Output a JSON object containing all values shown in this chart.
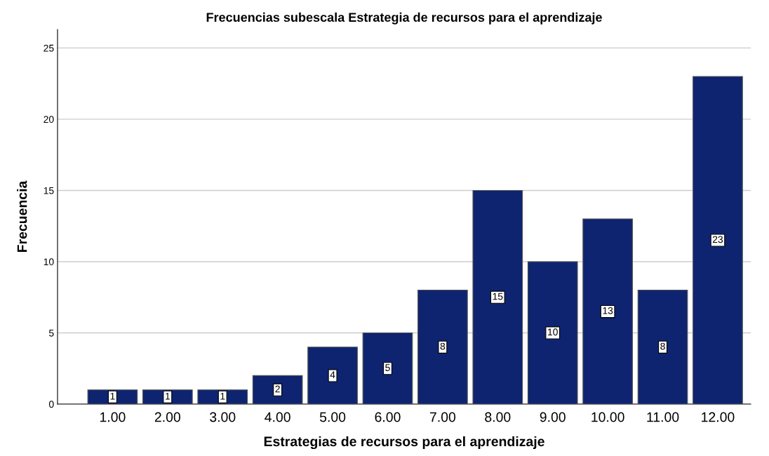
{
  "chart_data": {
    "type": "bar",
    "title": "Frecuencias subescala Estrategia de recursos para el aprendizaje",
    "xlabel": "Estrategias de recursos para el aprendizaje",
    "ylabel": "Frecuencia",
    "categories": [
      "1.00",
      "2.00",
      "3.00",
      "4.00",
      "5.00",
      "6.00",
      "7.00",
      "8.00",
      "9.00",
      "10.00",
      "11.00",
      "12.00"
    ],
    "values": [
      1,
      1,
      1,
      2,
      4,
      5,
      8,
      15,
      10,
      13,
      8,
      23
    ],
    "color": "#0e2470",
    "ylim": [
      0,
      26.3
    ],
    "yticks": [
      0,
      5,
      10,
      15,
      20,
      25
    ],
    "grid": "y",
    "data_labels": true
  }
}
